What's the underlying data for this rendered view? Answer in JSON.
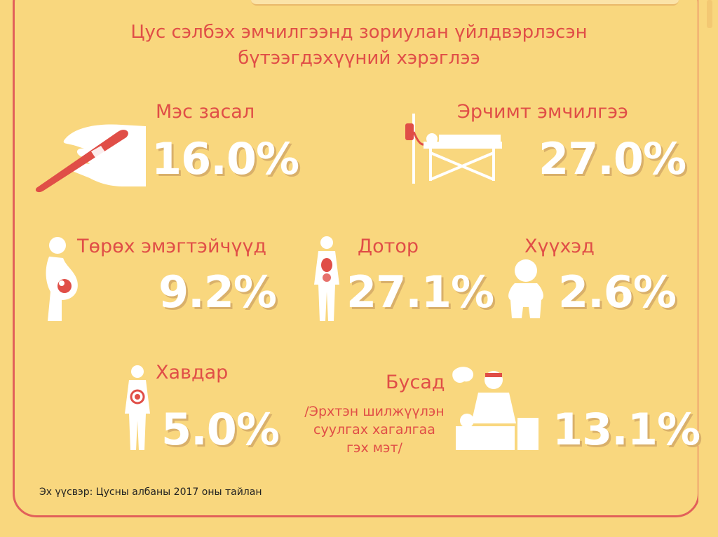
{
  "title_lines": [
    "Цус сэлбэх эмчилгээнд зориулан үйлдвэрлэсэн",
    "бүтээгдэхүүний хэрэглээ"
  ],
  "chart_data": {
    "type": "table",
    "title": "Цус сэлбэх эмчилгээнд зориулан үйлдвэрлэсэн бүтээгдэхүүний хэрэглээ",
    "categories": [
      "Мэс засал",
      "Эрчимт эмчилгээ",
      "Төрөх эмэгтэйчүүд",
      "Дотор",
      "Хүүхэд",
      "Хавдар",
      "Бусад"
    ],
    "values": [
      16.0,
      27.0,
      9.2,
      27.1,
      2.6,
      5.0,
      13.1
    ],
    "unit": "%"
  },
  "items": [
    {
      "label": "Мэс засал",
      "value": "16.0%",
      "icon": "scalpel-hand-icon"
    },
    {
      "label": "Эрчимт эмчилгээ",
      "value": "27.0%",
      "icon": "hospital-bed-iv-icon"
    },
    {
      "label": "Төрөх эмэгтэйчүүд",
      "value": "9.2%",
      "icon": "pregnant-woman-icon"
    },
    {
      "label": "Дотор",
      "value": "27.1%",
      "icon": "internal-organs-icon"
    },
    {
      "label": "Хүүхэд",
      "value": "2.6%",
      "icon": "baby-icon"
    },
    {
      "label": "Хавдар",
      "value": "5.0%",
      "icon": "tumor-body-icon"
    },
    {
      "label": "Бусад",
      "value": "13.1%",
      "icon": "surgery-transplant-icon"
    }
  ],
  "other_note": [
    "/Эрхтэн шилжүүлэн",
    "суулгах хагалгаа",
    "гэх мэт/"
  ],
  "source": "Эх үүсвэр: Цусны албаны 2017 оны тайлан",
  "colors": {
    "background": "#F9D77E",
    "accent_red": "#E04E47",
    "value_white": "#FFFFFF",
    "shadow_tan": "#D9B06A"
  }
}
